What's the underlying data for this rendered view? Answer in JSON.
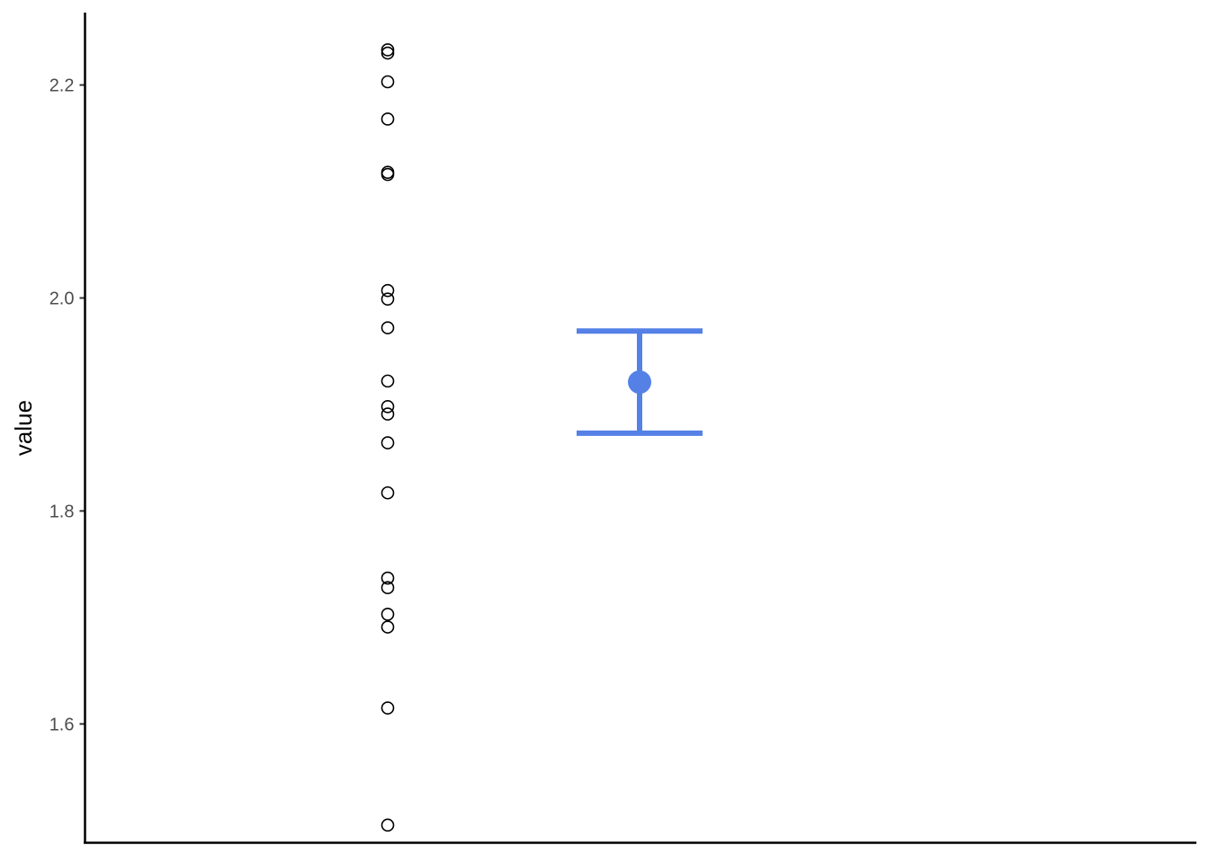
{
  "chart_data": {
    "type": "scatter",
    "title": "",
    "xlabel": "",
    "ylabel": "value",
    "ylim": [
      1.488,
      2.268
    ],
    "grid": false,
    "legend": "none",
    "y_ticks": [
      {
        "value": 1.6,
        "label": "1.6"
      },
      {
        "value": 1.8,
        "label": "1.8"
      },
      {
        "value": 2.0,
        "label": "2.0"
      },
      {
        "value": 2.2,
        "label": "2.2"
      }
    ],
    "series": [
      {
        "values": [
          2.233,
          2.23,
          2.203,
          2.168,
          2.118,
          2.116,
          2.007,
          1.999,
          1.972,
          1.922,
          1.898,
          1.891,
          1.864,
          1.817,
          1.737,
          1.728,
          1.703,
          1.691,
          1.615,
          1.505
        ],
        "color": "#000000",
        "marker": "open-circle"
      }
    ],
    "summary": {
      "mean": 1.921,
      "lower": 1.873,
      "upper": 1.969,
      "color": "#5581E6",
      "marker": "filled-circle-with-errorbar"
    }
  }
}
